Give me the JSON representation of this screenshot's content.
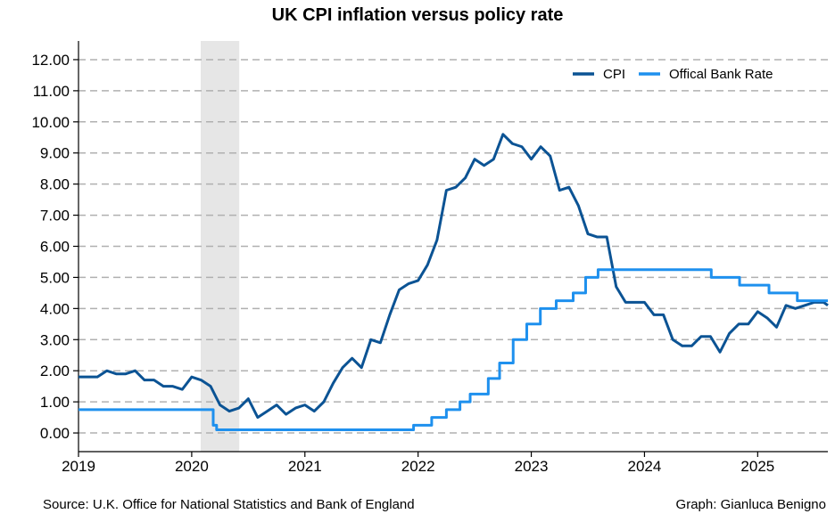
{
  "chart_data": {
    "type": "line",
    "title": "UK CPI inflation versus policy rate",
    "xlabel": "",
    "ylabel": "",
    "xlim": [
      2019.0,
      2025.62
    ],
    "ylim": [
      -0.6,
      12.6
    ],
    "yticks": [
      0,
      1,
      2,
      3,
      4,
      5,
      6,
      7,
      8,
      9,
      10,
      11,
      12
    ],
    "ytick_labels": [
      "0.00",
      "1.00",
      "2.00",
      "3.00",
      "4.00",
      "5.00",
      "6.00",
      "7.00",
      "8.00",
      "9.00",
      "10.00",
      "11.00",
      "12.00"
    ],
    "xticks": [
      2019,
      2020,
      2021,
      2022,
      2023,
      2024,
      2025
    ],
    "xtick_labels": [
      "2019",
      "2020",
      "2021",
      "2022",
      "2023",
      "2024",
      "2025"
    ],
    "grid": "horizontal dashed",
    "legend_position": "top-right",
    "shaded_period": {
      "start": 2020.08,
      "end": 2020.42,
      "label": ""
    },
    "series": [
      {
        "name": "CPI",
        "color": "#0b5394",
        "x": [
          2019.0,
          2019.083,
          2019.167,
          2019.25,
          2019.333,
          2019.417,
          2019.5,
          2019.583,
          2019.667,
          2019.75,
          2019.833,
          2019.917,
          2020.0,
          2020.083,
          2020.167,
          2020.25,
          2020.333,
          2020.417,
          2020.5,
          2020.583,
          2020.667,
          2020.75,
          2020.833,
          2020.917,
          2021.0,
          2021.083,
          2021.167,
          2021.25,
          2021.333,
          2021.417,
          2021.5,
          2021.583,
          2021.667,
          2021.75,
          2021.833,
          2021.917,
          2022.0,
          2022.083,
          2022.167,
          2022.25,
          2022.333,
          2022.417,
          2022.5,
          2022.583,
          2022.667,
          2022.75,
          2022.833,
          2022.917,
          2023.0,
          2023.083,
          2023.167,
          2023.25,
          2023.333,
          2023.417,
          2023.5,
          2023.583,
          2023.667,
          2023.75,
          2023.833,
          2023.917,
          2024.0,
          2024.083,
          2024.167,
          2024.25,
          2024.333,
          2024.417,
          2024.5,
          2024.583,
          2024.667,
          2024.75,
          2024.833,
          2024.917,
          2025.0,
          2025.083,
          2025.167,
          2025.25,
          2025.333,
          2025.417,
          2025.5,
          2025.583,
          2025.62
        ],
        "values": [
          1.8,
          1.8,
          1.8,
          2.0,
          1.9,
          1.9,
          2.0,
          1.7,
          1.7,
          1.5,
          1.5,
          1.4,
          1.8,
          1.7,
          1.5,
          0.9,
          0.7,
          0.8,
          1.1,
          0.5,
          0.7,
          0.9,
          0.6,
          0.8,
          0.9,
          0.7,
          1.0,
          1.6,
          2.1,
          2.4,
          2.1,
          3.0,
          2.9,
          3.8,
          4.6,
          4.8,
          4.9,
          5.4,
          6.2,
          7.8,
          7.9,
          8.2,
          8.8,
          8.6,
          8.8,
          9.6,
          9.3,
          9.2,
          8.8,
          9.2,
          8.9,
          7.8,
          7.9,
          7.3,
          6.4,
          6.3,
          6.3,
          4.7,
          4.2,
          4.2,
          4.2,
          3.8,
          3.8,
          3.0,
          2.8,
          2.8,
          3.1,
          3.1,
          2.6,
          3.2,
          3.5,
          3.5,
          3.9,
          3.7,
          3.4,
          4.1,
          4.0,
          4.1,
          4.2,
          4.2,
          4.1
        ]
      },
      {
        "name": "Offical Bank Rate",
        "color": "#1e90ee",
        "step": true,
        "x": [
          2019.0,
          2020.19,
          2020.22,
          2021.96,
          2022.12,
          2022.17,
          2022.25,
          2022.37,
          2022.46,
          2022.62,
          2022.72,
          2022.84,
          2022.96,
          2023.08,
          2023.22,
          2023.37,
          2023.48,
          2023.59,
          2024.59,
          2024.84,
          2025.1,
          2025.35,
          2025.62
        ],
        "values": [
          0.75,
          0.25,
          0.1,
          0.25,
          0.5,
          0.5,
          0.75,
          1.0,
          1.25,
          1.75,
          2.25,
          3.0,
          3.5,
          4.0,
          4.25,
          4.5,
          5.0,
          5.25,
          5.0,
          4.75,
          4.5,
          4.25,
          4.25
        ]
      }
    ]
  },
  "notes": {
    "source": "Source: U.K. Office for National Statistics and Bank of England",
    "credit": "Graph: Gianluca Benigno"
  }
}
